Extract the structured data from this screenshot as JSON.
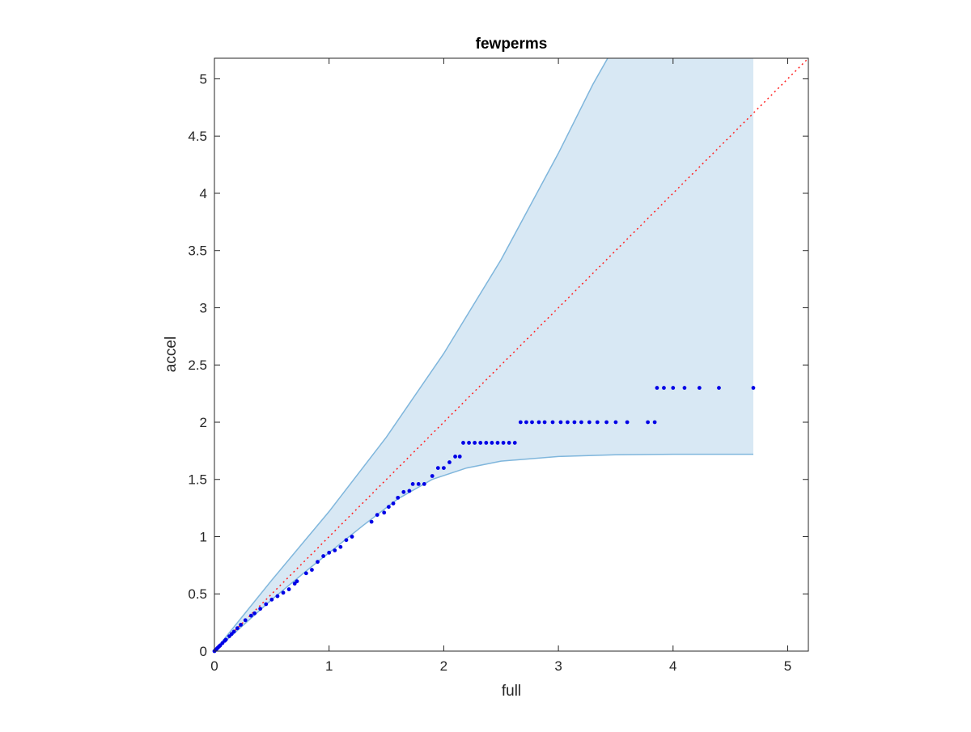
{
  "chart_data": {
    "type": "scatter",
    "title": "fewperms",
    "xlabel": "full",
    "ylabel": "accel",
    "xlim": [
      0,
      5.18
    ],
    "ylim": [
      0,
      5.18
    ],
    "xticks": [
      0,
      1,
      2,
      3,
      4,
      5
    ],
    "xtick_labels": [
      "0",
      "1",
      "2",
      "3",
      "4",
      "5"
    ],
    "yticks": [
      0,
      0.5,
      1,
      1.5,
      2,
      2.5,
      3,
      3.5,
      4,
      4.5,
      5
    ],
    "ytick_labels": [
      "0",
      "0.5",
      "1",
      "1.5",
      "2",
      "2.5",
      "3",
      "3.5",
      "4",
      "4.5",
      "5"
    ],
    "grid": false,
    "colors": {
      "points": "#0000e6",
      "band_fill": "#d8e8f4",
      "band_edge": "#7fb6dc",
      "reference": "#ff2020"
    },
    "reference_line": {
      "style": "dotted",
      "from": [
        0,
        0
      ],
      "to": [
        5.18,
        5.18
      ]
    },
    "band": {
      "x_end": 4.7,
      "upper": [
        [
          0,
          0
        ],
        [
          0.5,
          0.62
        ],
        [
          1,
          1.22
        ],
        [
          1.5,
          1.87
        ],
        [
          2,
          2.6
        ],
        [
          2.5,
          3.42
        ],
        [
          3,
          4.35
        ],
        [
          3.3,
          4.95
        ],
        [
          3.43,
          5.18
        ]
      ],
      "lower": [
        [
          0,
          0
        ],
        [
          0.5,
          0.45
        ],
        [
          0.8,
          0.7
        ],
        [
          1,
          0.86
        ],
        [
          1.3,
          1.1
        ],
        [
          1.6,
          1.33
        ],
        [
          1.9,
          1.5
        ],
        [
          2.2,
          1.6
        ],
        [
          2.5,
          1.66
        ],
        [
          3,
          1.7
        ],
        [
          3.5,
          1.715
        ],
        [
          4,
          1.72
        ],
        [
          4.7,
          1.72
        ]
      ]
    },
    "series": [
      {
        "points": [
          [
            0,
            0
          ],
          [
            0.01,
            0.01
          ],
          [
            0.02,
            0.02
          ],
          [
            0.03,
            0.03
          ],
          [
            0.04,
            0.04
          ],
          [
            0.05,
            0.05
          ],
          [
            0.07,
            0.07
          ],
          [
            0.09,
            0.09
          ],
          [
            0.1,
            0.1
          ],
          [
            0.13,
            0.13
          ],
          [
            0.15,
            0.15
          ],
          [
            0.17,
            0.17
          ],
          [
            0.2,
            0.2
          ],
          [
            0.23,
            0.23
          ],
          [
            0.27,
            0.27
          ],
          [
            0.32,
            0.31
          ],
          [
            0.35,
            0.33
          ],
          [
            0.4,
            0.37
          ],
          [
            0.45,
            0.41
          ],
          [
            0.5,
            0.45
          ],
          [
            0.55,
            0.48
          ],
          [
            0.6,
            0.51
          ],
          [
            0.65,
            0.54
          ],
          [
            0.7,
            0.59
          ],
          [
            0.72,
            0.61
          ],
          [
            0.8,
            0.68
          ],
          [
            0.85,
            0.71
          ],
          [
            0.9,
            0.78
          ],
          [
            0.95,
            0.83
          ],
          [
            1.0,
            0.86
          ],
          [
            1.05,
            0.88
          ],
          [
            1.1,
            0.91
          ],
          [
            1.15,
            0.97
          ],
          [
            1.2,
            1.0
          ],
          [
            1.37,
            1.13
          ],
          [
            1.42,
            1.19
          ],
          [
            1.48,
            1.21
          ],
          [
            1.52,
            1.26
          ],
          [
            1.56,
            1.29
          ],
          [
            1.6,
            1.34
          ],
          [
            1.65,
            1.39
          ],
          [
            1.7,
            1.4
          ],
          [
            1.73,
            1.46
          ],
          [
            1.78,
            1.46
          ],
          [
            1.83,
            1.46
          ],
          [
            1.9,
            1.53
          ],
          [
            1.95,
            1.6
          ],
          [
            2.0,
            1.6
          ],
          [
            2.05,
            1.65
          ],
          [
            2.1,
            1.7
          ],
          [
            2.14,
            1.7
          ],
          [
            2.17,
            1.82
          ],
          [
            2.22,
            1.82
          ],
          [
            2.27,
            1.82
          ],
          [
            2.32,
            1.82
          ],
          [
            2.37,
            1.82
          ],
          [
            2.42,
            1.82
          ],
          [
            2.47,
            1.82
          ],
          [
            2.52,
            1.82
          ],
          [
            2.57,
            1.82
          ],
          [
            2.62,
            1.82
          ],
          [
            2.67,
            2.0
          ],
          [
            2.72,
            2.0
          ],
          [
            2.77,
            2.0
          ],
          [
            2.83,
            2.0
          ],
          [
            2.88,
            2.0
          ],
          [
            2.95,
            2.0
          ],
          [
            3.02,
            2.0
          ],
          [
            3.08,
            2.0
          ],
          [
            3.14,
            2.0
          ],
          [
            3.2,
            2.0
          ],
          [
            3.27,
            2.0
          ],
          [
            3.34,
            2.0
          ],
          [
            3.42,
            2.0
          ],
          [
            3.5,
            2.0
          ],
          [
            3.6,
            2.0
          ],
          [
            3.78,
            2.0
          ],
          [
            3.84,
            2.0
          ],
          [
            3.86,
            2.3
          ],
          [
            3.92,
            2.3
          ],
          [
            4.0,
            2.3
          ],
          [
            4.1,
            2.3
          ],
          [
            4.23,
            2.3
          ],
          [
            4.4,
            2.3
          ],
          [
            4.7,
            2.3
          ]
        ]
      }
    ]
  }
}
